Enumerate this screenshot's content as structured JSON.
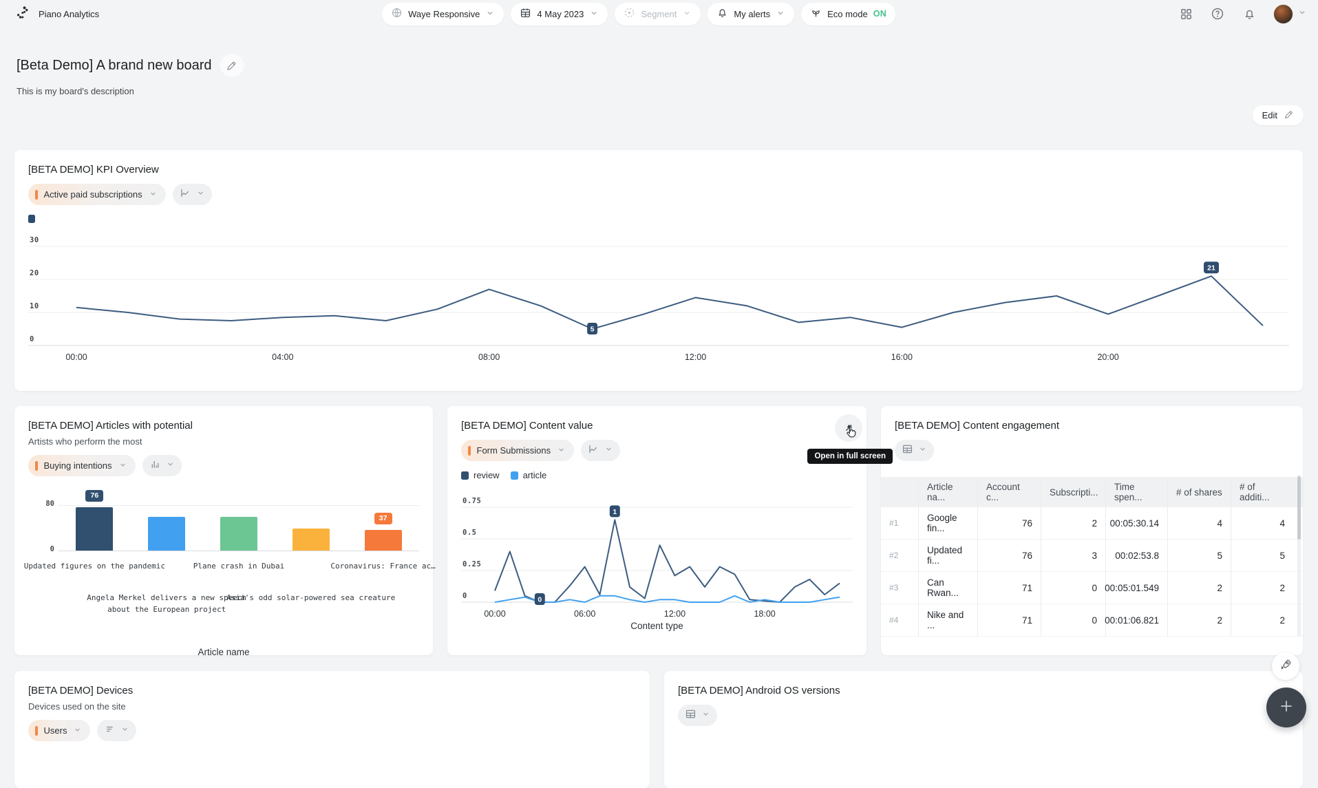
{
  "header": {
    "brand": "Piano Analytics",
    "site": "Waye Responsive",
    "date": "4 May 2023",
    "segment": "Segment",
    "alerts": "My alerts",
    "eco_label": "Eco mode",
    "eco_state": "ON"
  },
  "board": {
    "title": "[Beta Demo] A brand new board",
    "description": "This is my board's description",
    "edit": "Edit"
  },
  "widgets": {
    "kpi": {
      "title": "[BETA DEMO] KPI Overview",
      "metric": "Active paid subscriptions"
    },
    "articles": {
      "title": "[BETA DEMO] Articles with potential",
      "subtitle": "Artists who perform the most",
      "metric": "Buying intentions"
    },
    "content": {
      "title": "[BETA DEMO] Content value",
      "metric": "Form Submissions",
      "tooltip": "Open in full screen"
    },
    "engagement": {
      "title": "[BETA DEMO] Content engagement"
    },
    "devices": {
      "title": "[BETA DEMO] Devices",
      "subtitle": "Devices used on the site",
      "metric": "Users"
    },
    "android": {
      "title": "[BETA DEMO] Android OS versions"
    }
  },
  "table": {
    "columns": [
      "Article na...",
      "Account c...",
      "Subscripti...",
      "Time spen...",
      "# of shares",
      "# of additi..."
    ],
    "rows": [
      {
        "rank": "#1",
        "cells": [
          "Google fin...",
          "76",
          "2",
          "00:05:30.14",
          "4",
          "4"
        ]
      },
      {
        "rank": "#2",
        "cells": [
          "Updated fi...",
          "76",
          "3",
          "00:02:53.8",
          "5",
          "5"
        ]
      },
      {
        "rank": "#3",
        "cells": [
          "Can Rwan...",
          "71",
          "0",
          "00:05:01.549",
          "2",
          "2"
        ]
      },
      {
        "rank": "#4",
        "cells": [
          "Nike and ...",
          "71",
          "0",
          "00:01:06.821",
          "2",
          "2"
        ]
      }
    ]
  },
  "icons": {
    "site": "globe",
    "date": "calendar",
    "segment": "target",
    "alerts": "bell",
    "eco": "leaf",
    "apps": "grid",
    "help": "question-circle",
    "notifications": "bell",
    "expand": "arrow-up-right",
    "edit": "pencil",
    "chart_line": "line-chart",
    "chart_bar": "bar-chart",
    "chart_table": "table",
    "chart_list": "list",
    "fab": "plus",
    "quick_actions": "rocket"
  },
  "colors": {
    "navy": "#31506f",
    "navy_line": "#3c5c80",
    "badge": "#2f4d6e",
    "blue": "#41a0f0",
    "green": "#6cc694",
    "amber": "#fbb23c",
    "orange": "#f5793b",
    "accent_orange": "#ee8a49",
    "eco_green": "#44c08d"
  },
  "chart_data": [
    {
      "id": "kpi",
      "type": "line",
      "title": "[BETA DEMO] KPI Overview",
      "x": [
        "00:00",
        "01:00",
        "02:00",
        "03:00",
        "04:00",
        "05:00",
        "06:00",
        "07:00",
        "08:00",
        "09:00",
        "10:00",
        "11:00",
        "12:00",
        "13:00",
        "14:00",
        "15:00",
        "16:00",
        "17:00",
        "18:00",
        "19:00",
        "20:00",
        "21:00",
        "22:00",
        "23:00"
      ],
      "x_ticks": [
        {
          "index": 0,
          "label": "00:00"
        },
        {
          "index": 4,
          "label": "04:00"
        },
        {
          "index": 8,
          "label": "08:00"
        },
        {
          "index": 12,
          "label": "12:00"
        },
        {
          "index": 16,
          "label": "16:00"
        },
        {
          "index": 20,
          "label": "20:00"
        }
      ],
      "ylim": [
        0,
        30
      ],
      "y_ticks": [
        {
          "value": 0,
          "label": "0"
        },
        {
          "value": 10,
          "label": "10"
        },
        {
          "value": 20,
          "label": "20"
        },
        {
          "value": 30,
          "label": "30"
        }
      ],
      "series": [
        {
          "name": "Active paid subscriptions",
          "color": "#3c5c80",
          "values": [
            11.5,
            10,
            8,
            7.5,
            8.5,
            9,
            7.5,
            11,
            17,
            12,
            5,
            9.5,
            14.5,
            12,
            7,
            8.5,
            5.5,
            10,
            13,
            15,
            9.5,
            15.2,
            21,
            6
          ]
        }
      ],
      "point_labels": [
        {
          "series": 0,
          "index": 10,
          "text": "5",
          "dy": -9
        },
        {
          "series": 0,
          "index": 22,
          "text": "21",
          "dy": -21
        }
      ],
      "badge_color": "#2f4d6e",
      "grid": true,
      "legend_position": "top-left"
    },
    {
      "id": "articles",
      "type": "bar",
      "title": "[BETA DEMO] Articles with potential",
      "categories": [
        "Updated figures on the pandemic",
        "Angela Merkel delivers a new speech about the European project",
        "Plane crash in Dubai",
        "Asia's odd solar-powered sea creature",
        "Coronavirus: France ac…"
      ],
      "values": [
        76,
        60,
        60,
        39,
        37
      ],
      "colors": [
        "#31506f",
        "#41a0f0",
        "#6cc694",
        "#fbb23c",
        "#f5793b"
      ],
      "value_labels": [
        {
          "index": 0,
          "text": "76"
        },
        {
          "index": 4,
          "text": "37"
        }
      ],
      "ylim": [
        0,
        80
      ],
      "y_ticks": [
        {
          "value": 0,
          "label": "0"
        },
        {
          "value": 80,
          "label": "80"
        }
      ],
      "xlabel": "Article name"
    },
    {
      "id": "content",
      "type": "line",
      "title": "[BETA DEMO] Content value",
      "x_ticks": [
        {
          "index": 0,
          "label": "00:00"
        },
        {
          "index": 6,
          "label": "06:00"
        },
        {
          "index": 12,
          "label": "12:00"
        },
        {
          "index": 18,
          "label": "18:00"
        }
      ],
      "ylim": [
        0,
        0.75
      ],
      "y_ticks": [
        {
          "value": 0,
          "label": "0"
        },
        {
          "value": 0.25,
          "label": "0.25"
        },
        {
          "value": 0.5,
          "label": "0.5"
        },
        {
          "value": 0.75,
          "label": "0.75"
        }
      ],
      "series": [
        {
          "name": "review",
          "color": "#3c5c80",
          "values": [
            0.09,
            0.4,
            0.05,
            0,
            0,
            0.13,
            0.28,
            0.06,
            0.65,
            0.12,
            0.03,
            0.45,
            0.21,
            0.28,
            0.12,
            0.28,
            0.22,
            0.02,
            0.01,
            0,
            0.12,
            0.18,
            0.06,
            0.15
          ]
        },
        {
          "name": "article",
          "color": "#41a0f0",
          "values": [
            0,
            0.02,
            0.04,
            0,
            0,
            0.02,
            0,
            0.05,
            0.05,
            0.02,
            0,
            0.02,
            0.02,
            0,
            0,
            0,
            0.05,
            0,
            0.02,
            0,
            0,
            0,
            0.02,
            0.04
          ]
        }
      ],
      "point_labels": [
        {
          "series": 0,
          "index": 3,
          "text": "0",
          "dy": -13
        },
        {
          "series": 0,
          "index": 8,
          "text": "1",
          "dy": -21
        }
      ],
      "badge_color": "#2f4d6e",
      "xlabel": "Content type"
    }
  ]
}
